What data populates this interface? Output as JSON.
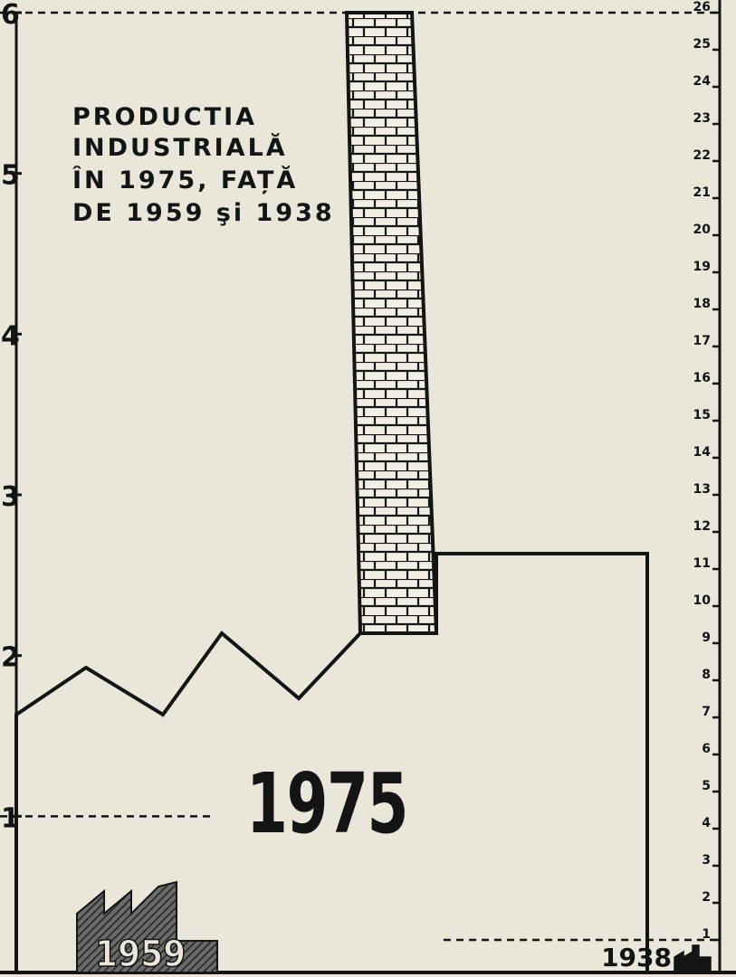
{
  "chart_data": {
    "type": "pictogram",
    "title": [
      "PRODUCTIA",
      "INDUSTRIALĂ",
      "ÎN 1975, FAȚĂ",
      "DE 1959 şi 1938"
    ],
    "categories": [
      "1938",
      "1959",
      "1975"
    ],
    "series": [
      {
        "values": [
          null,
          1,
          6
        ]
      },
      {
        "values": [
          1,
          null,
          26
        ],
        "axis": "y2"
      }
    ],
    "ylim": [
      0,
      6
    ],
    "yticks": [
      1,
      2,
      3,
      4,
      5,
      6
    ],
    "y2lim": [
      0,
      26
    ],
    "y2ticks": [
      1,
      2,
      3,
      4,
      5,
      6,
      7,
      8,
      9,
      10,
      11,
      12,
      13,
      14,
      15,
      16,
      17,
      18,
      19,
      20,
      21,
      22,
      23,
      24,
      25,
      26
    ],
    "color": "#141414"
  }
}
